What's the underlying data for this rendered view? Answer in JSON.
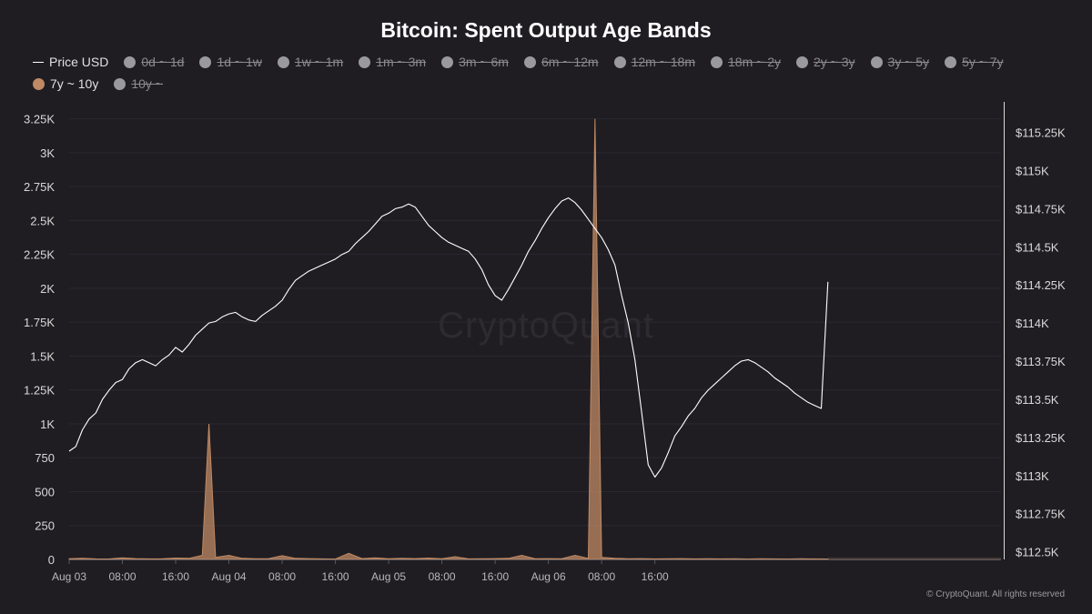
{
  "title": "Bitcoin: Spent Output Age Bands",
  "watermark": "CryptoQuant",
  "copyright": "© CryptoQuant. All rights reserved",
  "legend": [
    {
      "label": "Price USD",
      "marker": "line",
      "color": "#ffffff",
      "enabled": true
    },
    {
      "label": "0d ~ 1d",
      "marker": "dot",
      "color": "#9a9a9e",
      "enabled": false
    },
    {
      "label": "1d ~ 1w",
      "marker": "dot",
      "color": "#9a9a9e",
      "enabled": false
    },
    {
      "label": "1w ~ 1m",
      "marker": "dot",
      "color": "#9a9a9e",
      "enabled": false
    },
    {
      "label": "1m ~ 3m",
      "marker": "dot",
      "color": "#9a9a9e",
      "enabled": false
    },
    {
      "label": "3m ~ 6m",
      "marker": "dot",
      "color": "#9a9a9e",
      "enabled": false
    },
    {
      "label": "6m ~ 12m",
      "marker": "dot",
      "color": "#9a9a9e",
      "enabled": false
    },
    {
      "label": "12m ~ 18m",
      "marker": "dot",
      "color": "#9a9a9e",
      "enabled": false
    },
    {
      "label": "18m ~ 2y",
      "marker": "dot",
      "color": "#9a9a9e",
      "enabled": false
    },
    {
      "label": "2y ~ 3y",
      "marker": "dot",
      "color": "#9a9a9e",
      "enabled": false
    },
    {
      "label": "3y ~ 5y",
      "marker": "dot",
      "color": "#9a9a9e",
      "enabled": false
    },
    {
      "label": "5y ~ 7y",
      "marker": "dot",
      "color": "#9a9a9e",
      "enabled": false
    },
    {
      "label": "7y ~ 10y",
      "marker": "dot",
      "color": "#c08a64",
      "enabled": true
    },
    {
      "label": "10y ~",
      "marker": "dot",
      "color": "#9a9a9e",
      "enabled": false
    }
  ],
  "chart_data": {
    "type": "line",
    "x_unit": "hourly",
    "x_range": [
      "2025-08-03 00:00",
      "2025-08-07 20:00"
    ],
    "x_ticks": [
      "Aug 03",
      "08:00",
      "16:00",
      "Aug 04",
      "08:00",
      "16:00",
      "Aug 05",
      "08:00",
      "16:00",
      "Aug 06",
      "08:00",
      "16:00"
    ],
    "y_left_ticks": [
      "0",
      "250",
      "500",
      "750",
      "1K",
      "1.25K",
      "1.5K",
      "1.75K",
      "2K",
      "2.25K",
      "2.5K",
      "2.75K",
      "3K",
      "3.25K"
    ],
    "y_left_range": [
      0,
      3375
    ],
    "y_right_ticks": [
      "$112.5K",
      "$112.75K",
      "$113K",
      "$113.25K",
      "$113.5K",
      "$113.75K",
      "$114K",
      "$114.25K",
      "$114.5K",
      "$114.75K",
      "$115K",
      "$115.25K"
    ],
    "y_right_range": [
      112450,
      115450
    ],
    "series": [
      {
        "name": "Price USD",
        "axis": "right",
        "type": "line",
        "color": "#ffffff",
        "hours": [
          0,
          1,
          2,
          3,
          4,
          5,
          6,
          7,
          8,
          9,
          10,
          11,
          12,
          13,
          14,
          15,
          16,
          17,
          18,
          19,
          20,
          21,
          22,
          23,
          24,
          25,
          26,
          27,
          28,
          29,
          30,
          31,
          32,
          33,
          34,
          35,
          36,
          37,
          38,
          39,
          40,
          41,
          42,
          43,
          44,
          45,
          46,
          47,
          48,
          49,
          50,
          51,
          52,
          53,
          54,
          55,
          56,
          57,
          58,
          59,
          60,
          61,
          62,
          63,
          64,
          65,
          66,
          67,
          68,
          69,
          70,
          71,
          72,
          73,
          74,
          75,
          76,
          77,
          78,
          79,
          80,
          81,
          82,
          83,
          84,
          85,
          86,
          87,
          88,
          89,
          90,
          91,
          92,
          93,
          94,
          95,
          96,
          97,
          98,
          99,
          100,
          101,
          102,
          103,
          104,
          105,
          106,
          107,
          108,
          109,
          110,
          111,
          112,
          113,
          114
        ],
        "values": [
          113160,
          113190,
          113300,
          113370,
          113410,
          113500,
          113560,
          113610,
          113630,
          113700,
          113740,
          113760,
          113740,
          113720,
          113760,
          113790,
          113840,
          113810,
          113860,
          113920,
          113960,
          114000,
          114010,
          114040,
          114060,
          114070,
          114040,
          114020,
          114010,
          114050,
          114080,
          114110,
          114150,
          114220,
          114280,
          114310,
          114340,
          114360,
          114380,
          114400,
          114420,
          114450,
          114470,
          114520,
          114560,
          114600,
          114650,
          114700,
          114720,
          114750,
          114760,
          114780,
          114760,
          114700,
          114640,
          114600,
          114560,
          114530,
          114510,
          114490,
          114470,
          114420,
          114350,
          114250,
          114180,
          114150,
          114220,
          114300,
          114380,
          114470,
          114540,
          114620,
          114690,
          114750,
          114800,
          114820,
          114790,
          114740,
          114680,
          114620,
          114560,
          114480,
          114380,
          114180,
          114000,
          113760,
          113420,
          113070,
          112990,
          113050,
          113150,
          113260,
          113320,
          113390,
          113440,
          113510,
          113560,
          113600,
          113640,
          113680,
          113720,
          113750,
          113760,
          113740,
          113710,
          113680,
          113640,
          113610,
          113580,
          113540,
          113510,
          113480,
          113460,
          113440,
          114270
        ]
      },
      {
        "name": "7y ~ 10y",
        "axis": "left",
        "type": "area",
        "color": "#c08a64",
        "hours": [
          0,
          2,
          4,
          6,
          8,
          10,
          12,
          14,
          16,
          18,
          20,
          21,
          22,
          24,
          26,
          28,
          30,
          32,
          34,
          36,
          38,
          40,
          42,
          44,
          46,
          48,
          50,
          52,
          54,
          56,
          58,
          60,
          62,
          64,
          66,
          68,
          70,
          72,
          74,
          76,
          78,
          79,
          80,
          82,
          84,
          86,
          88,
          90,
          92,
          94,
          96,
          98,
          100,
          102,
          104,
          106,
          108,
          110,
          112,
          114
        ],
        "values": [
          5,
          8,
          4,
          3,
          12,
          6,
          4,
          5,
          10,
          8,
          30,
          1000,
          15,
          30,
          8,
          5,
          6,
          28,
          8,
          6,
          4,
          3,
          45,
          6,
          12,
          5,
          8,
          6,
          10,
          5,
          20,
          4,
          5,
          6,
          8,
          30,
          5,
          6,
          5,
          30,
          8,
          3250,
          15,
          8,
          5,
          6,
          4,
          5,
          6,
          4,
          5,
          4,
          5,
          3,
          5,
          4,
          3,
          5,
          4,
          3
        ]
      }
    ]
  }
}
